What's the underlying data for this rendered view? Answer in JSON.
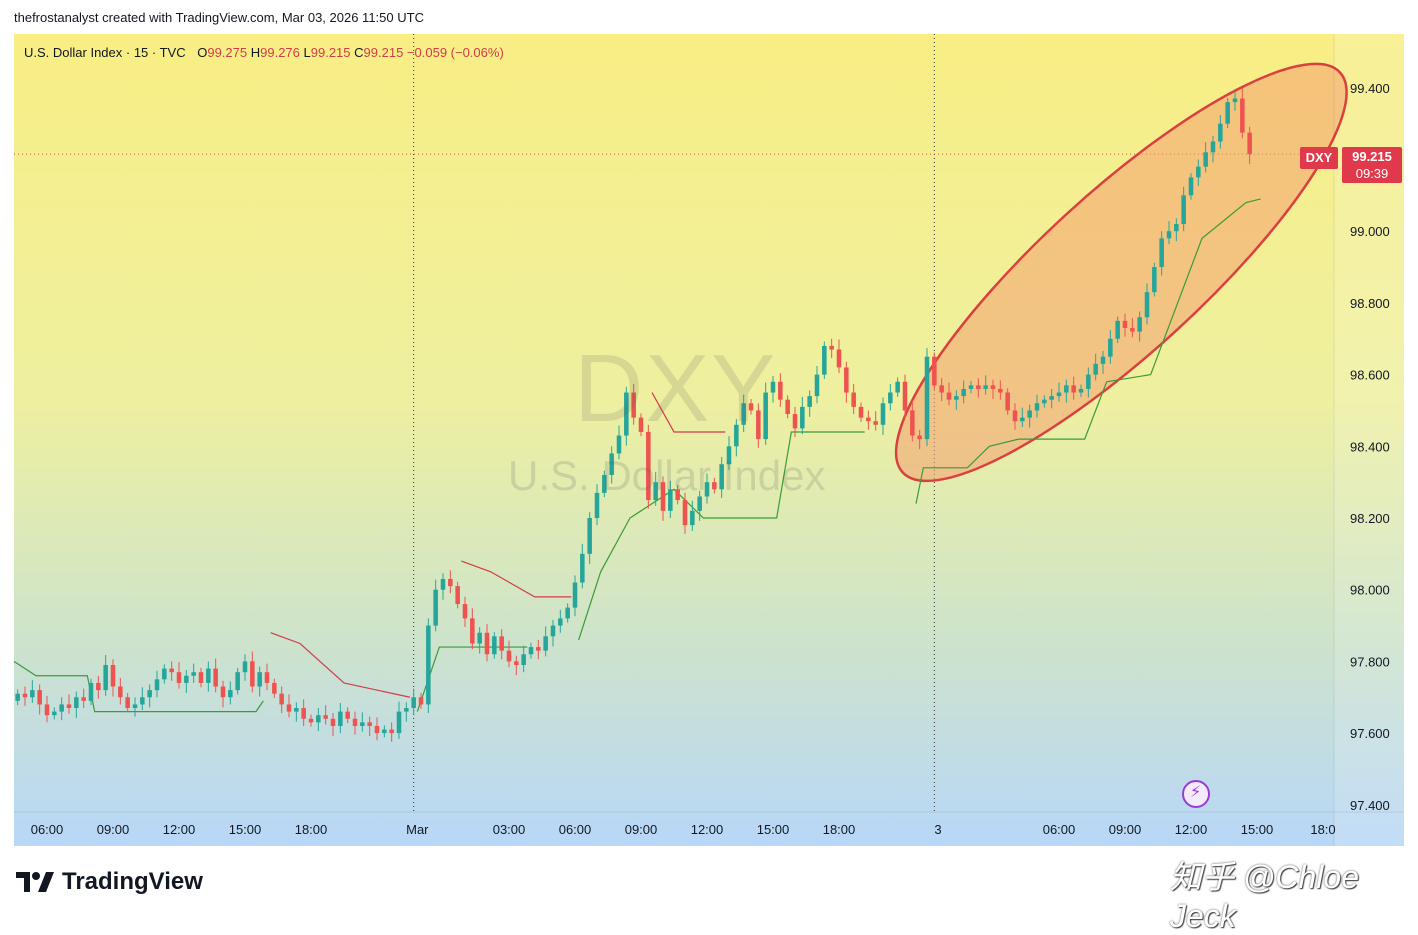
{
  "header": {
    "credit_line": "thefrostanalyst created with TradingView.com, Mar 03, 2026 11:50 UTC"
  },
  "legend": {
    "symbol": "U.S. Dollar Index · 15 · TVC",
    "open_label": "O",
    "open": "99.275",
    "high_label": "H",
    "high": "99.276",
    "low_label": "L",
    "low": "99.215",
    "close_label": "C",
    "close": "99.215",
    "change": "−0.059 (−0.06%)"
  },
  "watermark": {
    "ticker": "DXY",
    "name": "U.S. Dollar Index"
  },
  "last_price": {
    "symbol": "DXY",
    "price": "99.215",
    "timer": "09:39"
  },
  "footer": {
    "brand": "TradingView",
    "credit": "知乎 @Chloe Jeck"
  },
  "colors": {
    "up": "#26a69a",
    "down": "#ef5350",
    "trail_up": "#3a9b3a",
    "trail_down": "#d23c4b",
    "ellipse_stroke": "#d94040",
    "ellipse_fill": "#f4a070",
    "bg_top": "#f7ee86",
    "bg_bottom": "#b7d6f7"
  },
  "icons": {
    "logo": "tradingview-logo-icon",
    "bolt": "lightning-bolt-icon"
  },
  "chart_data": {
    "type": "candlestick",
    "title": "U.S. Dollar Index · 15 · TVC",
    "y_ticks": [
      "99.400",
      "99.000",
      "98.800",
      "98.600",
      "98.400",
      "98.200",
      "98.000",
      "97.800",
      "97.600",
      "97.400"
    ],
    "y_tick_values": [
      99.4,
      99.0,
      98.8,
      98.6,
      98.4,
      98.2,
      98.0,
      97.8,
      97.6,
      97.4
    ],
    "ylim": [
      97.38,
      99.55
    ],
    "x_ticks": [
      "06:00",
      "09:00",
      "12:00",
      "15:00",
      "18:00",
      "Mar",
      "03:00",
      "06:00",
      "09:00",
      "12:00",
      "15:00",
      "18:00",
      "3",
      "06:00",
      "09:00",
      "12:00",
      "15:00",
      "18:0"
    ],
    "x_tick_index": [
      4.5,
      13.5,
      22.5,
      31.5,
      40.5,
      55,
      67.5,
      76.5,
      85.5,
      94.5,
      103.5,
      112.5,
      126,
      142.5,
      151.5,
      160.5,
      169.5,
      178.5
    ],
    "session_breaks": [
      54.5,
      125.5
    ],
    "xlim": [
      0,
      180
    ],
    "last_price": 99.215,
    "closes": [
      97.71,
      97.7,
      97.72,
      97.68,
      97.65,
      97.66,
      97.68,
      97.67,
      97.7,
      97.69,
      97.74,
      97.72,
      97.79,
      97.73,
      97.7,
      97.67,
      97.68,
      97.7,
      97.72,
      97.75,
      97.78,
      97.77,
      97.74,
      97.76,
      97.77,
      97.74,
      97.78,
      97.73,
      97.7,
      97.72,
      97.77,
      97.8,
      97.73,
      97.77,
      97.74,
      97.71,
      97.68,
      97.66,
      97.67,
      97.64,
      97.63,
      97.65,
      97.64,
      97.62,
      97.66,
      97.64,
      97.62,
      97.63,
      97.62,
      97.6,
      97.61,
      97.6,
      97.66,
      97.67,
      97.7,
      97.68,
      97.9,
      98.0,
      98.03,
      98.01,
      97.96,
      97.92,
      97.85,
      97.88,
      97.82,
      97.87,
      97.83,
      97.8,
      97.79,
      97.82,
      97.84,
      97.83,
      97.87,
      97.9,
      97.92,
      97.95,
      98.02,
      98.1,
      98.2,
      98.27,
      98.32,
      98.38,
      98.43,
      98.55,
      98.48,
      98.44,
      98.25,
      98.3,
      98.22,
      98.28,
      98.25,
      98.18,
      98.22,
      98.26,
      98.3,
      98.28,
      98.35,
      98.4,
      98.46,
      98.52,
      98.5,
      98.42,
      98.55,
      98.58,
      98.53,
      98.49,
      98.45,
      98.51,
      98.54,
      98.6,
      98.68,
      98.67,
      98.62,
      98.55,
      98.51,
      98.48,
      98.47,
      98.46,
      98.52,
      98.55,
      98.58,
      98.5,
      98.43,
      98.42,
      98.65,
      98.57,
      98.55,
      98.53,
      98.54,
      98.56,
      98.57,
      98.56,
      98.57,
      98.56,
      98.55,
      98.5,
      98.47,
      98.48,
      98.5,
      98.52,
      98.53,
      98.54,
      98.55,
      98.57,
      98.55,
      98.56,
      98.6,
      98.63,
      98.65,
      98.7,
      98.75,
      98.73,
      98.72,
      98.76,
      98.83,
      98.9,
      98.98,
      99.0,
      99.02,
      99.1,
      99.15,
      99.18,
      99.22,
      99.25,
      99.3,
      99.36,
      99.37,
      99.275,
      99.215
    ],
    "trail_notes": "Green = trailing stop (support) line, red = trailing stop (resistance) line"
  }
}
